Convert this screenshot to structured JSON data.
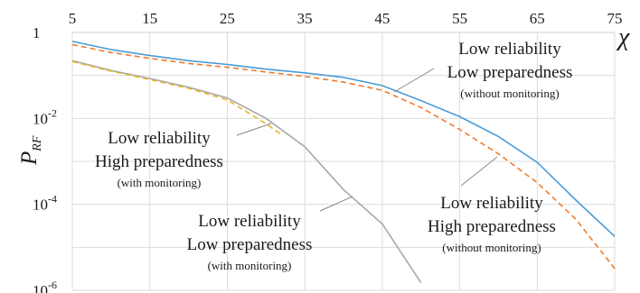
{
  "chart_data": {
    "type": "line",
    "xlabel": "χ",
    "ylabel": "P",
    "ylabel_subscript": "RF",
    "xlim": [
      5,
      75
    ],
    "ylim_log10": [
      -6,
      0
    ],
    "yscale": "log",
    "x_ticks": [
      "5",
      "15",
      "25",
      "35",
      "45",
      "55",
      "65",
      "75"
    ],
    "y_tick_labels": [
      {
        "base": "1",
        "exp": ""
      },
      {
        "base": "10",
        "exp": "-2"
      },
      {
        "base": "10",
        "exp": "-4"
      },
      {
        "base": "10",
        "exp": "-6"
      }
    ],
    "grid": true,
    "series": [
      {
        "color": "#4a9bd8",
        "dash": "solid",
        "x": [
          5,
          10,
          15,
          20,
          25,
          30,
          35,
          40,
          45,
          50,
          55,
          60,
          65,
          70,
          75
        ],
        "y": [
          0.62,
          0.4,
          0.29,
          0.22,
          0.18,
          0.14,
          0.115,
          0.09,
          0.058,
          0.026,
          0.011,
          0.0038,
          0.00095,
          0.000125,
          1.8e-05
        ]
      },
      {
        "color": "#f07a2a",
        "dash": "dashed",
        "x": [
          5,
          10,
          15,
          20,
          25,
          30,
          35,
          40,
          45,
          50,
          55,
          60,
          65,
          70,
          75
        ],
        "y": [
          0.52,
          0.34,
          0.25,
          0.19,
          0.155,
          0.12,
          0.095,
          0.07,
          0.045,
          0.018,
          0.0055,
          0.0015,
          0.00032,
          4.5e-05,
          3.2e-06
        ]
      },
      {
        "color": "#a8a8a8",
        "dash": "solid",
        "x": [
          5,
          10,
          15,
          20,
          25,
          30,
          35,
          40,
          45,
          50
        ],
        "y": [
          0.22,
          0.13,
          0.085,
          0.053,
          0.03,
          0.01,
          0.0022,
          0.00022,
          3.5e-05,
          1.5e-06
        ]
      },
      {
        "color": "#e8b828",
        "dash": "dashed",
        "x": [
          5,
          10,
          15,
          20,
          25,
          30,
          32
        ],
        "y": [
          0.21,
          0.125,
          0.08,
          0.05,
          0.027,
          0.0075,
          0.0042
        ]
      }
    ],
    "annotations": [
      {
        "lines": [
          "Low reliability",
          "Low preparedness"
        ],
        "note": "(without monitoring)"
      },
      {
        "lines": [
          "Low reliability",
          "High preparedness"
        ],
        "note": "(with monitoring)"
      },
      {
        "lines": [
          "Low reliability",
          "Low preparedness"
        ],
        "note": "(with monitoring)"
      },
      {
        "lines": [
          "Low reliability",
          "High preparedness"
        ],
        "note": "(without monitoring)"
      }
    ]
  }
}
